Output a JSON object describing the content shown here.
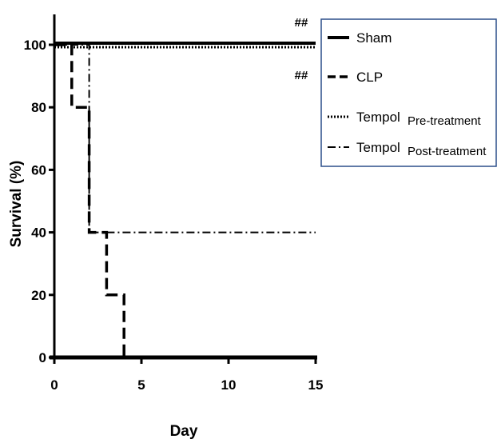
{
  "chart_data": {
    "type": "line",
    "step": true,
    "xlabel": "Day",
    "ylabel": "Survival (%)",
    "xlim": [
      0,
      15
    ],
    "ylim": [
      0,
      100
    ],
    "xticks": [
      0,
      5,
      10,
      15
    ],
    "yticks": [
      0,
      20,
      40,
      60,
      80,
      100
    ],
    "legend_position": "top-right",
    "series": [
      {
        "name": "Sham",
        "style": "solid",
        "x": [
          0,
          15
        ],
        "y": [
          100,
          100
        ]
      },
      {
        "name": "CLP",
        "style": "dashed",
        "x": [
          0,
          1,
          1,
          2,
          2,
          3,
          3,
          4,
          4
        ],
        "y": [
          100,
          100,
          80,
          80,
          40,
          40,
          20,
          20,
          0
        ]
      },
      {
        "name": "Tempol",
        "name_suffix": "Pre-treatment",
        "style": "dotted",
        "x": [
          0,
          15
        ],
        "y": [
          100,
          100
        ]
      },
      {
        "name": "Tempol",
        "name_suffix": "Post-treatment",
        "style": "dashdot",
        "x": [
          0,
          2,
          2,
          15
        ],
        "y": [
          100,
          100,
          40,
          40
        ]
      }
    ],
    "annotations": [
      "##",
      "##"
    ]
  }
}
